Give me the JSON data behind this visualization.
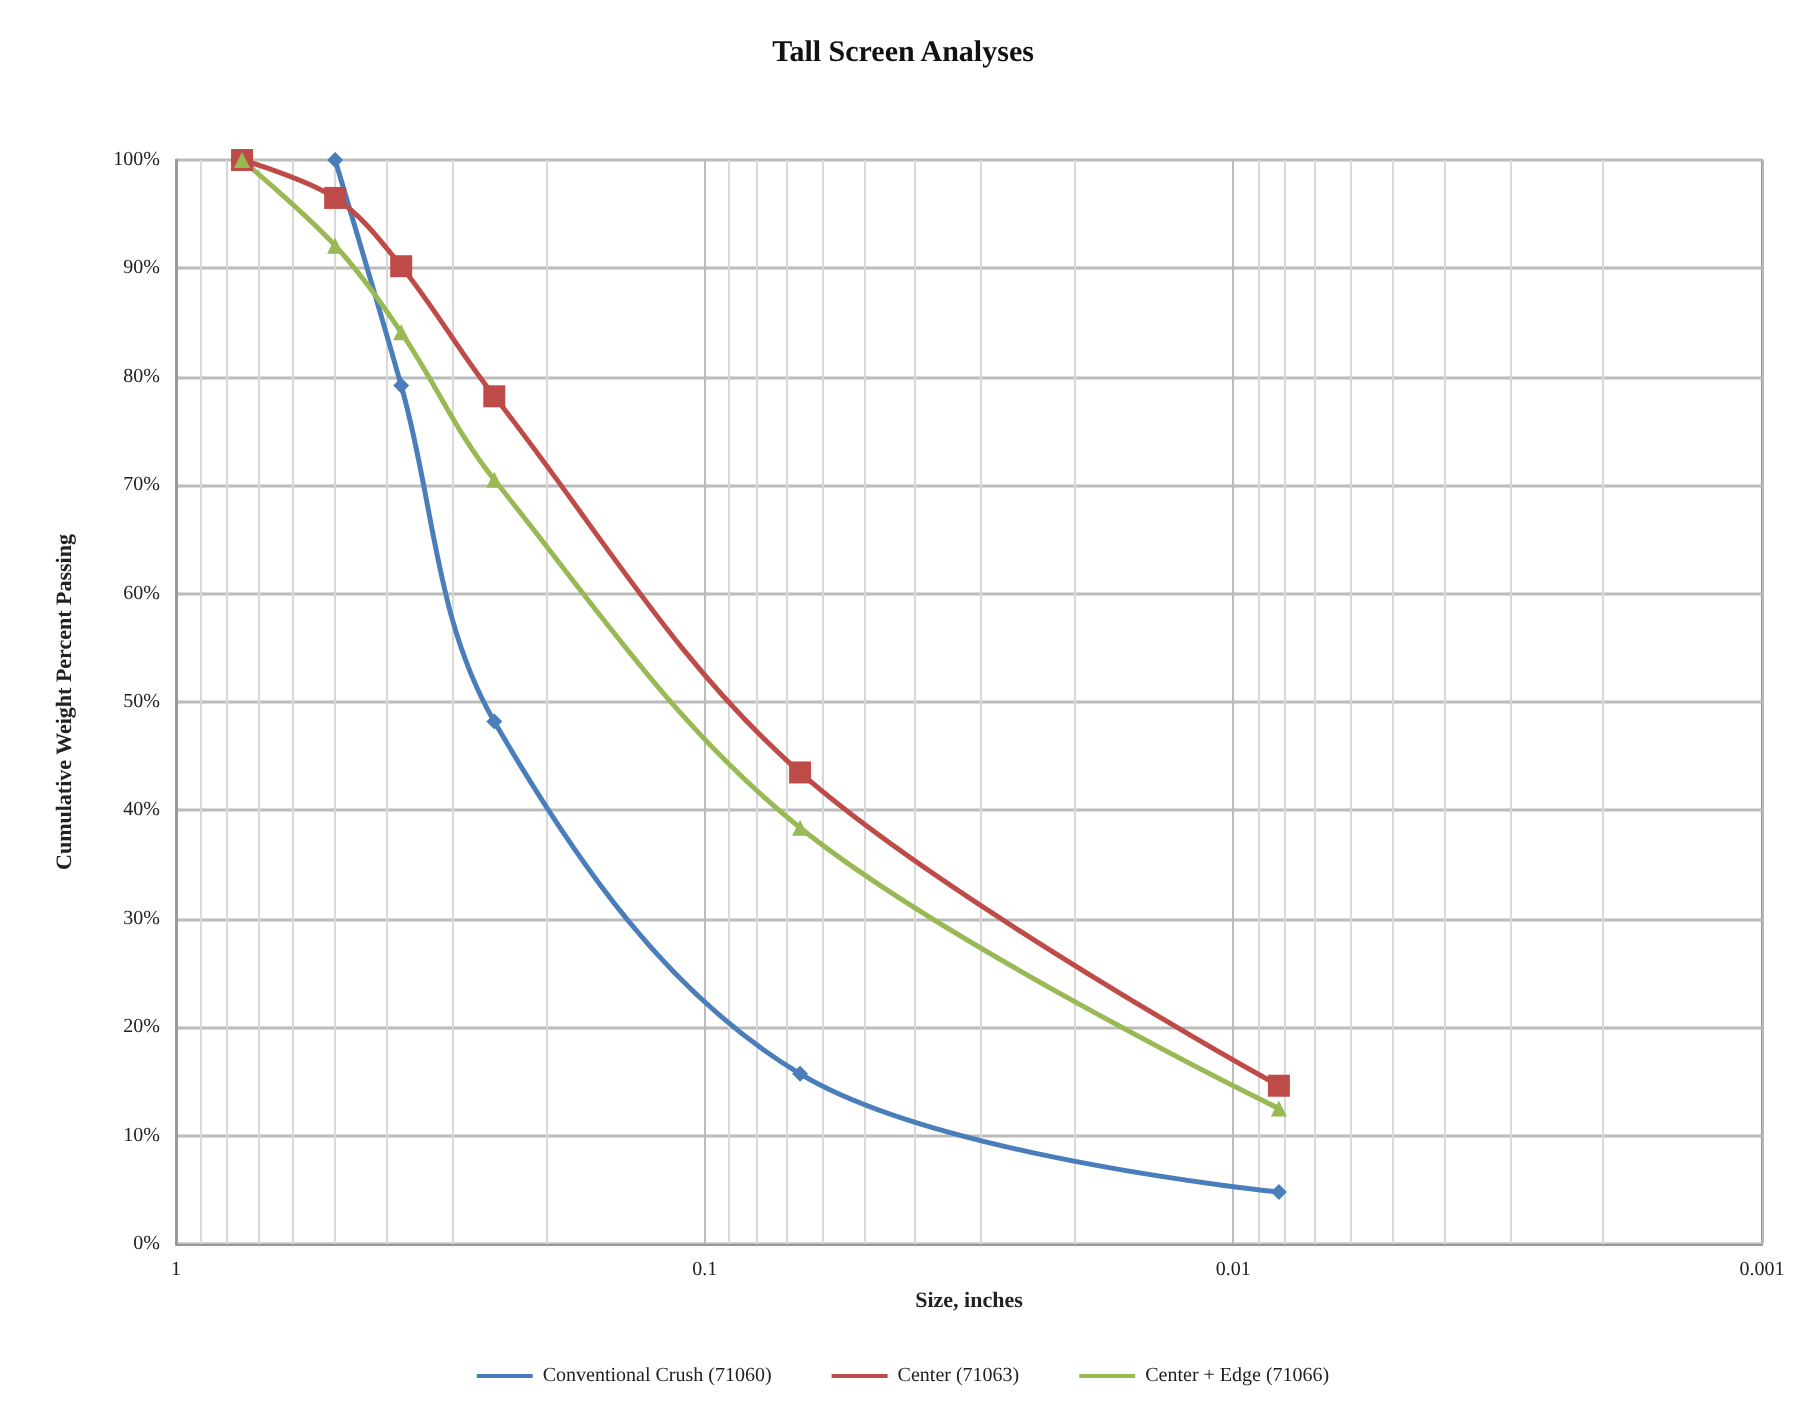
{
  "chart_data": {
    "type": "line",
    "title": "Tall Screen Analyses",
    "xlabel": "Size, inches",
    "ylabel": "Cumulative Weight Percent Passing",
    "log": "x",
    "xlim": [
      1,
      0.001
    ],
    "xticks": [
      1,
      0.1,
      0.01,
      0.001
    ],
    "ylim": [
      0,
      100
    ],
    "yticks": [
      {
        "value": 0,
        "label": "0%"
      },
      {
        "value": 10,
        "label": "10%"
      },
      {
        "value": 20,
        "label": "20%"
      },
      {
        "value": 30,
        "label": "30%"
      },
      {
        "value": 40,
        "label": "40%"
      },
      {
        "value": 50,
        "label": "50%"
      },
      {
        "value": 60,
        "label": "60%"
      },
      {
        "value": 70,
        "label": "70%"
      },
      {
        "value": 80,
        "label": "80%"
      },
      {
        "value": 90,
        "label": "90%"
      },
      {
        "value": 100,
        "label": "100%"
      }
    ],
    "grid": true,
    "legend": "bottom",
    "line_style": "solid",
    "series": [
      {
        "name": "Conventional Crush (71060)",
        "color": "#4a7ebb",
        "marker": "diamond",
        "x": [
          0.5,
          0.375,
          0.25,
          0.066,
          0.0082
        ],
        "values": [
          100,
          79.2,
          48.2,
          15.7,
          4.8
        ]
      },
      {
        "name": "Center (71063)",
        "color": "#be4b48",
        "marker": "square",
        "x": [
          0.75,
          0.5,
          0.375,
          0.25,
          0.066,
          0.0082
        ],
        "values": [
          100,
          96.5,
          90.2,
          78.2,
          43.5,
          14.6
        ]
      },
      {
        "name": "Center + Edge (71066)",
        "color": "#98b954",
        "marker": "triangle",
        "x": [
          0.75,
          0.5,
          0.375,
          0.25,
          0.066,
          0.0082
        ],
        "values": [
          100,
          92.1,
          84.1,
          70.5,
          38.4,
          12.5
        ]
      }
    ]
  }
}
